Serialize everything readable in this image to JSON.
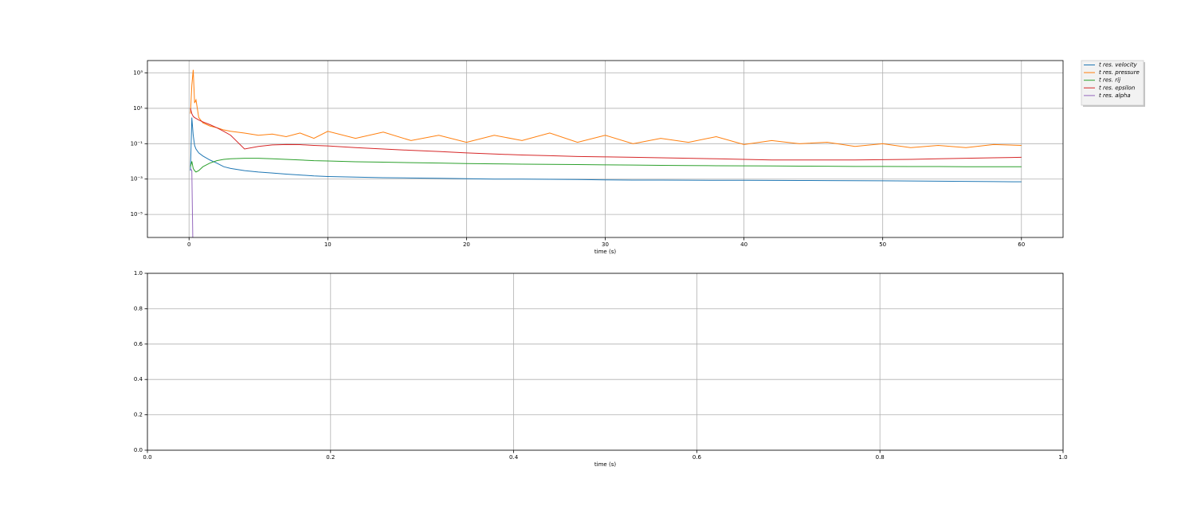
{
  "chart_data": [
    {
      "type": "line",
      "xlabel": "time (s)",
      "yscale": "log",
      "grid": true,
      "legend_loc": "outside upper right",
      "xlim": [
        -3,
        63
      ],
      "xticks": [
        0,
        10,
        20,
        30,
        40,
        50,
        60
      ],
      "ylim": [
        5e-07,
        5000
      ],
      "yticks": [
        {
          "value": 1000,
          "label": "10³"
        },
        {
          "value": 10,
          "label": "10¹"
        },
        {
          "value": 0.1,
          "label": "10⁻¹"
        },
        {
          "value": 0.001,
          "label": "10⁻³"
        },
        {
          "value": 1e-05,
          "label": "10⁻⁵"
        }
      ],
      "x": [
        0.1,
        0.2,
        0.3,
        0.4,
        0.5,
        0.7,
        1,
        1.5,
        2,
        2.5,
        3,
        4,
        5,
        6,
        7,
        8,
        9,
        10,
        12,
        14,
        16,
        18,
        20,
        22,
        24,
        26,
        28,
        30,
        32,
        34,
        36,
        38,
        40,
        42,
        44,
        46,
        48,
        50,
        52,
        54,
        56,
        58,
        60
      ],
      "series": [
        {
          "name": "t res.  velocity",
          "color": "#1f77b4",
          "values": [
            0.003,
            3,
            0.3,
            0.08,
            0.05,
            0.03,
            0.02,
            0.012,
            0.008,
            0.005,
            0.004,
            0.003,
            0.0025,
            0.0022,
            0.0019,
            0.0017,
            0.0015,
            0.0014,
            0.0013,
            0.0012,
            0.00115,
            0.0011,
            0.00105,
            0.001,
            0.001,
            0.00097,
            0.00094,
            0.0009,
            0.00088,
            0.00087,
            0.00086,
            0.00085,
            0.00085,
            0.00084,
            0.00083,
            0.00082,
            0.00081,
            0.0008,
            0.00078,
            0.00076,
            0.00074,
            0.00072,
            0.0007
          ]
        },
        {
          "name": "t res.  pressure",
          "color": "#ff7f0e",
          "values": [
            5,
            200,
            1500,
            20,
            30,
            3,
            1.5,
            1,
            0.8,
            0.6,
            0.5,
            0.4,
            0.3,
            0.35,
            0.25,
            0.4,
            0.2,
            0.5,
            0.2,
            0.45,
            0.15,
            0.3,
            0.12,
            0.3,
            0.15,
            0.4,
            0.12,
            0.3,
            0.1,
            0.2,
            0.12,
            0.25,
            0.09,
            0.15,
            0.1,
            0.12,
            0.07,
            0.1,
            0.06,
            0.08,
            0.06,
            0.09,
            0.08
          ]
        },
        {
          "name": "t res.  rij",
          "color": "#2ca02c",
          "values": [
            0.005,
            0.01,
            0.004,
            0.003,
            0.0025,
            0.003,
            0.005,
            0.008,
            0.011,
            0.013,
            0.014,
            0.015,
            0.015,
            0.014,
            0.013,
            0.012,
            0.011,
            0.0105,
            0.0095,
            0.009,
            0.0085,
            0.008,
            0.0075,
            0.0072,
            0.007,
            0.0068,
            0.0066,
            0.0064,
            0.0062,
            0.006,
            0.0058,
            0.0057,
            0.0056,
            0.0055,
            0.0054,
            0.0053,
            0.0052,
            0.0052,
            0.0051,
            0.0051,
            0.005,
            0.005,
            0.005
          ]
        },
        {
          "name": "t res.  epsilon",
          "color": "#d62728",
          "values": [
            10,
            5,
            3.5,
            3,
            2.7,
            2.2,
            1.7,
            1.2,
            0.8,
            0.5,
            0.3,
            0.05,
            0.07,
            0.085,
            0.09,
            0.088,
            0.08,
            0.075,
            0.06,
            0.05,
            0.042,
            0.036,
            0.03,
            0.026,
            0.023,
            0.021,
            0.019,
            0.018,
            0.017,
            0.016,
            0.015,
            0.014,
            0.013,
            0.012,
            0.012,
            0.012,
            0.012,
            0.0125,
            0.013,
            0.014,
            0.015,
            0.016,
            0.017
          ]
        },
        {
          "name": "t res.  alpha",
          "color": "#9467bd",
          "values": [
            0.004,
            0.003,
            1e-08,
            null,
            null,
            null,
            null,
            null,
            null,
            null,
            null,
            null,
            null,
            null,
            null,
            null,
            null,
            null,
            null,
            null,
            null,
            null,
            null,
            null,
            null,
            null,
            null,
            null,
            null,
            null,
            null,
            null,
            null,
            null,
            null,
            null,
            null,
            null,
            null,
            null,
            null,
            null,
            null
          ]
        }
      ]
    },
    {
      "type": "line",
      "xlabel": "time (s)",
      "grid": true,
      "xlim": [
        0,
        1
      ],
      "ylim": [
        0,
        1
      ],
      "xticks": [
        {
          "value": 0,
          "label": "0.0"
        },
        {
          "value": 0.2,
          "label": "0.2"
        },
        {
          "value": 0.4,
          "label": "0.4"
        },
        {
          "value": 0.6,
          "label": "0.6"
        },
        {
          "value": 0.8,
          "label": "0.8"
        },
        {
          "value": 1,
          "label": "1.0"
        }
      ],
      "yticks": [
        {
          "value": 0,
          "label": "0.0"
        },
        {
          "value": 0.2,
          "label": "0.2"
        },
        {
          "value": 0.4,
          "label": "0.4"
        },
        {
          "value": 0.6,
          "label": "0.6"
        },
        {
          "value": 0.8,
          "label": "0.8"
        },
        {
          "value": 1,
          "label": "1.0"
        }
      ],
      "x": [],
      "series": []
    }
  ]
}
